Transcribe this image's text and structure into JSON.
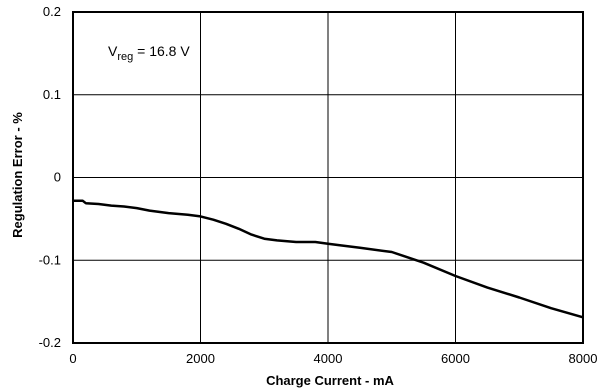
{
  "chart_data": {
    "type": "line",
    "xlabel": "Charge Current - mA",
    "ylabel": "Regulation Error - %",
    "xlim": [
      0,
      8000
    ],
    "ylim": [
      -0.2,
      0.2
    ],
    "xticks": [
      0,
      2000,
      4000,
      6000,
      8000
    ],
    "yticks": [
      0.2,
      0.1,
      0,
      -0.1,
      -0.2
    ],
    "xtick_labels": [
      "0",
      "2000",
      "4000",
      "6000",
      "8000"
    ],
    "ytick_labels": [
      "0.2",
      "0.1",
      "0",
      "-0.1",
      "-0.2"
    ],
    "grid": true,
    "annotation": {
      "main": "V",
      "subscript": "reg",
      "rest": " = 16.8 V"
    },
    "series": [
      {
        "color": "#000000",
        "x": [
          0,
          150,
          200,
          400,
          600,
          800,
          1000,
          1200,
          1500,
          1800,
          2000,
          2200,
          2400,
          2600,
          2800,
          3000,
          3200,
          3500,
          3800,
          4000,
          4200,
          4500,
          5000,
          5500,
          6000,
          6500,
          7000,
          7500,
          8000
        ],
        "y": [
          -0.028,
          -0.028,
          -0.031,
          -0.032,
          -0.034,
          -0.035,
          -0.037,
          -0.04,
          -0.043,
          -0.045,
          -0.047,
          -0.051,
          -0.056,
          -0.062,
          -0.069,
          -0.074,
          -0.076,
          -0.078,
          -0.078,
          -0.08,
          -0.082,
          -0.085,
          -0.09,
          -0.103,
          -0.119,
          -0.133,
          -0.145,
          -0.158,
          -0.169
        ]
      }
    ]
  }
}
